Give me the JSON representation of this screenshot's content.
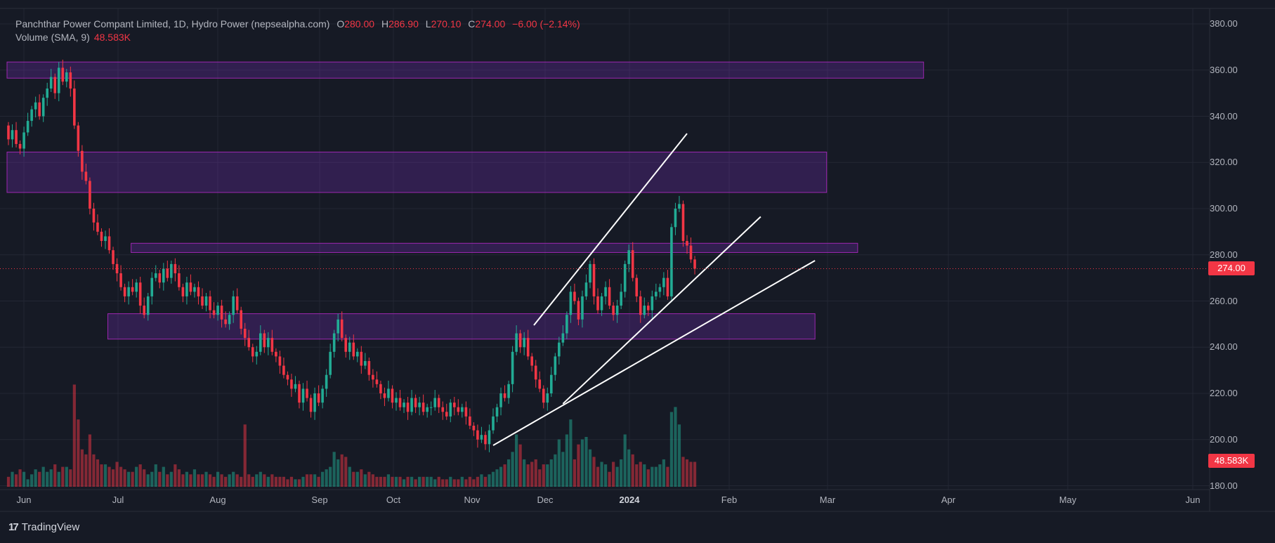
{
  "header": {
    "title": "Panchthar Power Compant Limited, 1D, Hydro Power (nepsealpha.com)",
    "open_label": "O",
    "open": "280.00",
    "high_label": "H",
    "high": "286.90",
    "low_label": "L",
    "low": "270.10",
    "close_label": "C",
    "close": "274.00",
    "change": "−6.00 (−2.14%)"
  },
  "volume": {
    "label": "Volume (SMA, 9)",
    "value": "48.583K"
  },
  "branding": {
    "name": "TradingView"
  },
  "badges": {
    "last_price": "274.00",
    "last_volume": "48.583K"
  },
  "colors": {
    "up": "#22ab94",
    "down": "#f23645",
    "zone_fill": "#7b2fbe",
    "zone_stroke": "#9c27b0",
    "trendline": "#ffffff",
    "background": "#161a25",
    "grid": "#232734"
  },
  "chart_data": {
    "type": "candlestick",
    "title": "Panchthar Power Compant Limited, 1D, Hydro Power (nepsealpha.com)",
    "y_axis": {
      "ticks": [
        "380.00",
        "360.00",
        "340.00",
        "320.00",
        "300.00",
        "280.00",
        "260.00",
        "240.00",
        "220.00",
        "200.00",
        "180.00"
      ],
      "ylim": [
        178,
        385
      ]
    },
    "x_axis": {
      "ticks": [
        "Jun",
        "Jul",
        "Aug",
        "Sep",
        "Oct",
        "Nov",
        "Dec",
        "2024",
        "Feb",
        "Mar",
        "Apr",
        "May",
        "Jun"
      ]
    },
    "last_close": 274.0,
    "start_price": 336,
    "closes": [
      330,
      334,
      328,
      326,
      333,
      338,
      343,
      346,
      340,
      348,
      352,
      357,
      350,
      361,
      355,
      359,
      352,
      336,
      325,
      316,
      312,
      300,
      294,
      290,
      286,
      288,
      282,
      276,
      272,
      266,
      262,
      266,
      264,
      268,
      258,
      254,
      262,
      270,
      272,
      268,
      274,
      270,
      276,
      272,
      266,
      262,
      268,
      264,
      266,
      262,
      258,
      262,
      256,
      254,
      258,
      252,
      250,
      254,
      262,
      256,
      248,
      244,
      240,
      236,
      238,
      246,
      240,
      244,
      238,
      236,
      232,
      228,
      226,
      222,
      224,
      216,
      222,
      218,
      212,
      220,
      216,
      222,
      228,
      238,
      246,
      252,
      244,
      238,
      242,
      236,
      238,
      232,
      234,
      228,
      226,
      224,
      220,
      218,
      222,
      216,
      218,
      214,
      216,
      212,
      218,
      214,
      216,
      212,
      214,
      214,
      218,
      214,
      212,
      210,
      216,
      214,
      212,
      214,
      210,
      206,
      204,
      200,
      202,
      198,
      204,
      210,
      214,
      220,
      218,
      224,
      238,
      246,
      240,
      244,
      236,
      232,
      226,
      222,
      216,
      220,
      228,
      236,
      242,
      246,
      254,
      264,
      260,
      252,
      262,
      268,
      276,
      262,
      256,
      262,
      266,
      258,
      254,
      258,
      264,
      276,
      282,
      270,
      262,
      254,
      258,
      256,
      262,
      264,
      266,
      270,
      262,
      292,
      300,
      302,
      286,
      284,
      278,
      274
    ],
    "volumes": [
      4,
      6,
      5,
      7,
      6,
      3,
      5,
      7,
      6,
      8,
      6,
      7,
      9,
      6,
      8,
      8,
      7,
      41,
      27,
      15,
      13,
      21,
      13,
      11,
      9,
      9,
      8,
      7,
      10,
      8,
      7,
      6,
      6,
      8,
      9,
      7,
      5,
      6,
      9,
      6,
      8,
      5,
      6,
      9,
      7,
      5,
      6,
      5,
      7,
      5,
      5,
      6,
      5,
      4,
      6,
      5,
      4,
      5,
      6,
      5,
      4,
      25,
      5,
      4,
      5,
      6,
      5,
      4,
      5,
      4,
      4,
      4,
      3,
      4,
      3,
      3,
      4,
      5,
      5,
      5,
      4,
      6,
      7,
      8,
      14,
      11,
      13,
      12,
      8,
      6,
      6,
      7,
      5,
      6,
      5,
      4,
      4,
      4,
      5,
      4,
      4,
      4,
      3,
      4,
      4,
      3,
      4,
      4,
      4,
      4,
      3,
      4,
      3,
      3,
      4,
      3,
      3,
      4,
      3,
      4,
      3,
      4,
      5,
      4,
      5,
      6,
      7,
      8,
      9,
      11,
      14,
      21,
      17,
      11,
      9,
      10,
      11,
      7,
      9,
      9,
      11,
      13,
      19,
      14,
      21,
      27,
      11,
      17,
      19,
      20,
      15,
      12,
      8,
      10,
      9,
      6,
      10,
      8,
      11,
      21,
      15,
      13,
      9,
      10,
      9,
      7,
      8,
      8,
      9,
      11,
      8,
      30,
      32,
      25,
      12,
      11,
      10,
      10
    ],
    "volume_sma_9": 48.583,
    "zones": [
      {
        "from_idx": 0,
        "to_idx": 236,
        "low": 356.5,
        "high": 363.5
      },
      {
        "from_idx": 0,
        "to_idx": 211,
        "low": 307,
        "high": 324.5
      },
      {
        "from_idx": 32,
        "to_idx": 219,
        "low": 281,
        "high": 285
      },
      {
        "from_idx": 26,
        "to_idx": 208,
        "low": 243.5,
        "high": 254.5
      }
    ],
    "trendlines": [
      {
        "x1": 135.5,
        "y1": 249.5,
        "x2": 175,
        "y2": 332.5
      },
      {
        "x1": 143,
        "y1": 215.5,
        "x2": 194,
        "y2": 296.5
      },
      {
        "x1": 125,
        "y1": 197.5,
        "x2": 208,
        "y2": 277.5
      }
    ]
  }
}
